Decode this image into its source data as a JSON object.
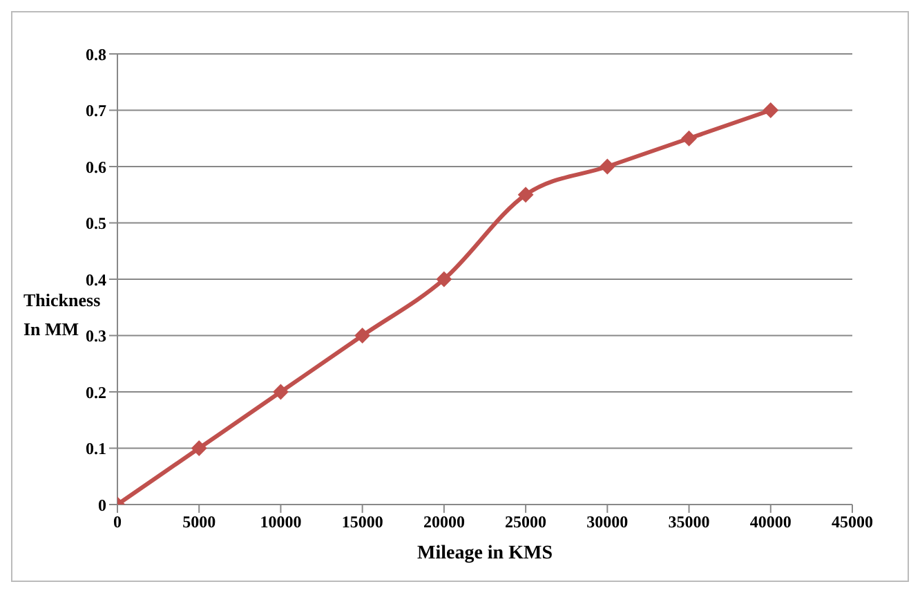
{
  "chart_data": {
    "type": "line",
    "xlabel": "Mileage in KMS",
    "ylabel": "Thickness In MM",
    "x": [
      0,
      5000,
      10000,
      15000,
      20000,
      25000,
      30000,
      35000,
      40000
    ],
    "series": [
      {
        "color": "#c0504d",
        "values": [
          0,
          0.1,
          0.2,
          0.3,
          0.4,
          0.55,
          0.6,
          0.65,
          0.7
        ]
      }
    ],
    "xlim": [
      0,
      45000
    ],
    "xticks": [
      0,
      5000,
      10000,
      15000,
      20000,
      25000,
      30000,
      35000,
      40000,
      45000
    ],
    "ylim": [
      0,
      0.8
    ],
    "yticks": [
      0,
      0.1,
      0.2,
      0.3,
      0.4,
      0.5,
      0.6,
      0.7,
      0.8
    ],
    "grid": "y",
    "marker": "diamond",
    "line_style": "solid",
    "legend": false
  }
}
